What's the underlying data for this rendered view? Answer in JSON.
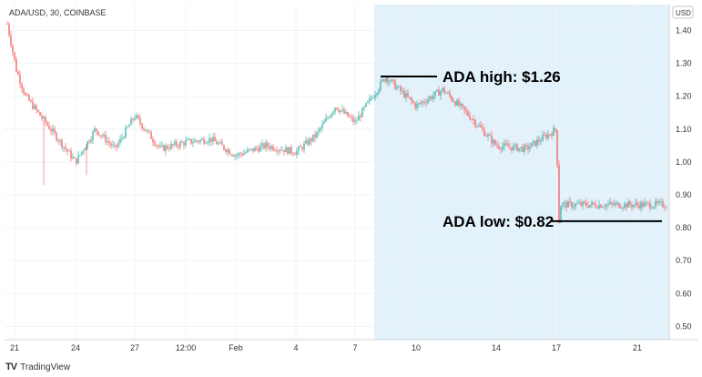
{
  "chart_data": {
    "type": "candlestick",
    "title": "ADA/USD, 30, COINBASE",
    "currency": "USD",
    "ylim": [
      0.45,
      1.46
    ],
    "y_ticks": [
      "1.40",
      "1.30",
      "1.20",
      "1.10",
      "1.00",
      "0.90",
      "0.80",
      "0.70",
      "0.60",
      "0.50"
    ],
    "x_ticks": [
      "21",
      "24",
      "27",
      "12:00",
      "Feb",
      "4",
      "7",
      "10",
      "14",
      "17",
      "21"
    ],
    "highlight_period": {
      "start": "7",
      "end": "21"
    },
    "price_path": [
      {
        "x": "21",
        "y": 1.42
      },
      {
        "x": "21",
        "y": 1.28
      },
      {
        "x": "21",
        "y": 1.2
      },
      {
        "x": "24",
        "y": 1.0
      },
      {
        "x": "24",
        "y": 1.1
      },
      {
        "x": "24",
        "y": 1.04
      },
      {
        "x": "27",
        "y": 1.14
      },
      {
        "x": "27",
        "y": 1.04
      },
      {
        "x": "12:00",
        "y": 1.06
      },
      {
        "x": "12:00",
        "y": 1.07
      },
      {
        "x": "Feb",
        "y": 1.02
      },
      {
        "x": "Feb",
        "y": 1.05
      },
      {
        "x": "4",
        "y": 1.03
      },
      {
        "x": "4",
        "y": 1.08
      },
      {
        "x": "4",
        "y": 1.17
      },
      {
        "x": "7",
        "y": 1.12
      },
      {
        "x": "7",
        "y": 1.26
      },
      {
        "x": "10",
        "y": 1.17
      },
      {
        "x": "10",
        "y": 1.22
      },
      {
        "x": "10",
        "y": 1.14
      },
      {
        "x": "14",
        "y": 1.05
      },
      {
        "x": "14",
        "y": 1.04
      },
      {
        "x": "17",
        "y": 1.1
      },
      {
        "x": "17",
        "y": 1.0
      },
      {
        "x": "21",
        "y": 0.94
      },
      {
        "x": "21",
        "y": 0.82
      },
      {
        "x": "21",
        "y": 0.87
      }
    ],
    "annotations": [
      {
        "text": "ADA high: $1.26",
        "value": 1.26
      },
      {
        "text": "ADA low: $0.82",
        "value": 0.82
      }
    ],
    "grid": true
  },
  "colors": {
    "up": "#26a69a",
    "down": "#ef5350",
    "highlight": "#e3f1fb",
    "grid": "#f0f3fa"
  },
  "footer": {
    "logo_text": "TV",
    "brand": "TradingView"
  }
}
